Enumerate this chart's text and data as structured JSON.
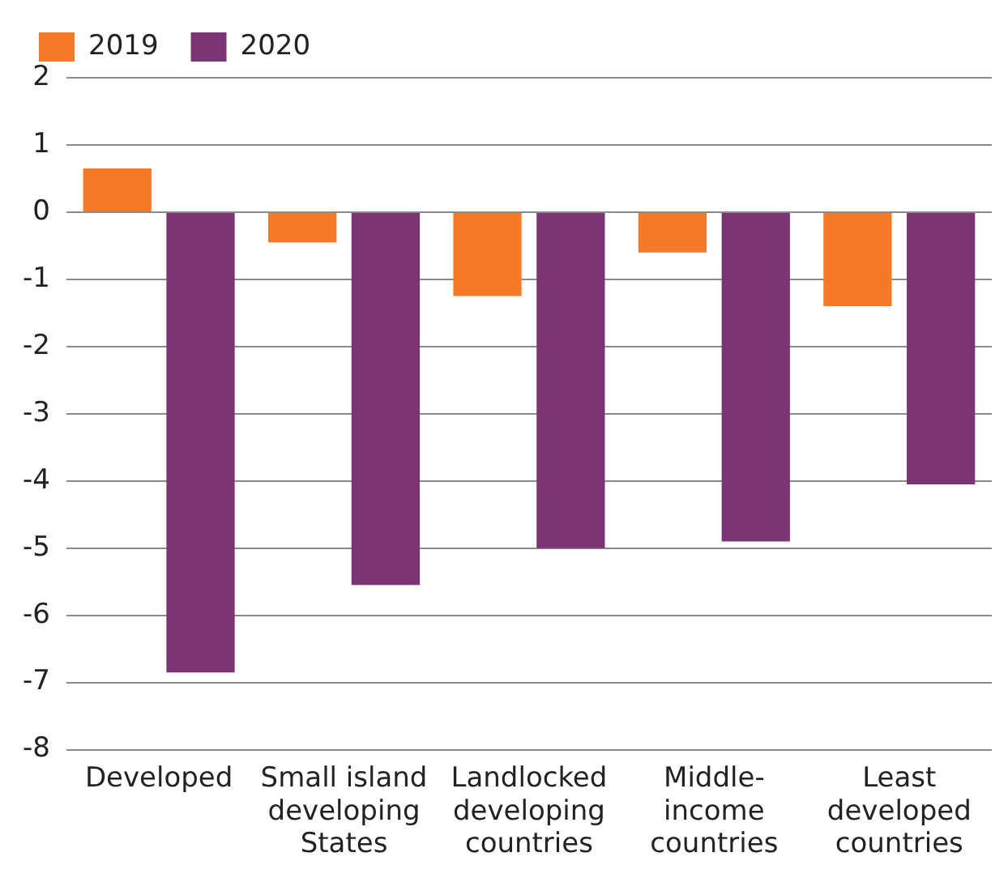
{
  "chart_data": {
    "type": "bar",
    "categories": [
      "Developed",
      "Small island\ndeveloping\nStates",
      "Landlocked\ndeveloping\ncountries",
      "Middle-\nincome\ncountries",
      "Least\ndeveloped\ncountries"
    ],
    "series": [
      {
        "name": "2019",
        "color": "#f47a2a",
        "values": [
          0.65,
          -0.45,
          -1.25,
          -0.6,
          -1.4
        ]
      },
      {
        "name": "2020",
        "color": "#7b3575",
        "values": [
          -6.85,
          -5.55,
          -5.0,
          -4.9,
          -4.05
        ]
      }
    ],
    "ylim": [
      -8,
      2
    ],
    "yticks": [
      -8,
      -7,
      -6,
      -5,
      -4,
      -3,
      -2,
      -1,
      0,
      1,
      2
    ],
    "grid": "y",
    "legend": "top left"
  }
}
